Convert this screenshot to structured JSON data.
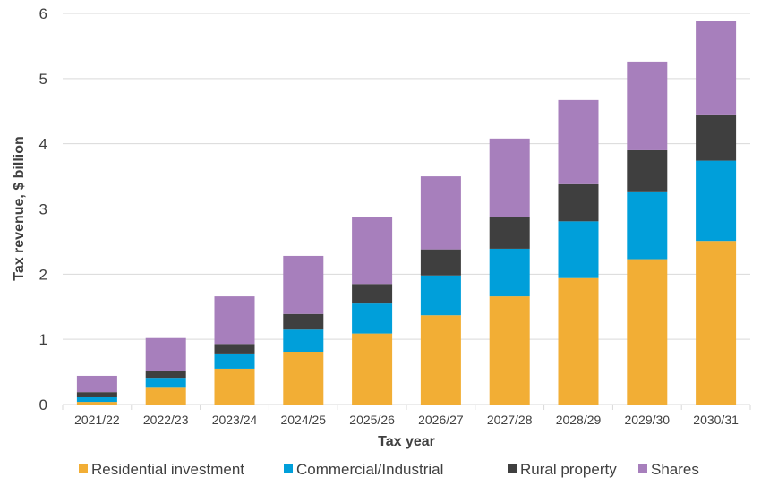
{
  "chart_data": {
    "type": "bar",
    "stacked": true,
    "title": "",
    "xlabel": "Tax year",
    "ylabel": "Tax revenue, $ billion",
    "ylim": [
      0,
      6
    ],
    "yticks": [
      0,
      1,
      2,
      3,
      4,
      5,
      6
    ],
    "grid": true,
    "legend_position": "bottom",
    "categories": [
      "2021/22",
      "2022/23",
      "2023/24",
      "2024/25",
      "2025/26",
      "2026/27",
      "2027/28",
      "2028/29",
      "2029/30",
      "2030/31"
    ],
    "series": [
      {
        "name": "Residential investment",
        "color": "#F2AE35",
        "values": [
          0.04,
          0.27,
          0.55,
          0.81,
          1.09,
          1.37,
          1.66,
          1.94,
          2.23,
          2.51
        ]
      },
      {
        "name": "Commercial/Industrial",
        "color": "#009FDA",
        "values": [
          0.07,
          0.14,
          0.22,
          0.34,
          0.46,
          0.61,
          0.73,
          0.87,
          1.04,
          1.23
        ]
      },
      {
        "name": "Rural property",
        "color": "#3F3F3F",
        "values": [
          0.08,
          0.1,
          0.16,
          0.24,
          0.3,
          0.4,
          0.48,
          0.57,
          0.63,
          0.71
        ]
      },
      {
        "name": "Shares",
        "color": "#A77FBC",
        "values": [
          0.25,
          0.51,
          0.73,
          0.89,
          1.02,
          1.12,
          1.21,
          1.29,
          1.36,
          1.43
        ]
      }
    ]
  }
}
